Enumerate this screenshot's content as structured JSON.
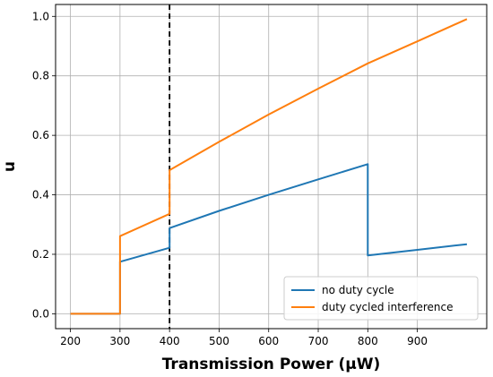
{
  "chart_data": {
    "type": "line",
    "title": "",
    "xlabel": "Transmission Power (μW)",
    "ylabel": "u",
    "xlim": [
      170,
      1040
    ],
    "ylim": [
      -0.05,
      1.04
    ],
    "x_ticks": [
      200,
      300,
      400,
      500,
      600,
      700,
      800,
      900
    ],
    "y_ticks": [
      0.0,
      0.2,
      0.4,
      0.6,
      0.8,
      1.0
    ],
    "x_tick_labels": [
      "200",
      "300",
      "400",
      "500",
      "600",
      "700",
      "800",
      "900"
    ],
    "y_tick_labels": [
      "0.0",
      "0.2",
      "0.4",
      "0.6",
      "0.8",
      "1.0"
    ],
    "grid": true,
    "legend_position": "lower-right",
    "reference_line": {
      "x": 400,
      "style": "dashed",
      "color": "#000000"
    },
    "series": [
      {
        "name": "no duty cycle",
        "color": "#1f77b4",
        "points": [
          [
            200,
            0.0
          ],
          [
            300,
            0.0
          ],
          [
            300,
            0.175
          ],
          [
            400,
            0.222
          ],
          [
            400,
            0.288
          ],
          [
            500,
            0.346
          ],
          [
            600,
            0.4
          ],
          [
            700,
            0.452
          ],
          [
            800,
            0.503
          ],
          [
            800,
            0.196
          ],
          [
            900,
            0.215
          ],
          [
            1000,
            0.234
          ]
        ]
      },
      {
        "name": "duty cycled interference",
        "color": "#ff7f0e",
        "points": [
          [
            200,
            0.0
          ],
          [
            300,
            0.0
          ],
          [
            300,
            0.261
          ],
          [
            400,
            0.336
          ],
          [
            400,
            0.483
          ],
          [
            500,
            0.578
          ],
          [
            600,
            0.67
          ],
          [
            700,
            0.757
          ],
          [
            800,
            0.842
          ],
          [
            900,
            0.916
          ],
          [
            1000,
            0.991
          ]
        ]
      }
    ]
  }
}
